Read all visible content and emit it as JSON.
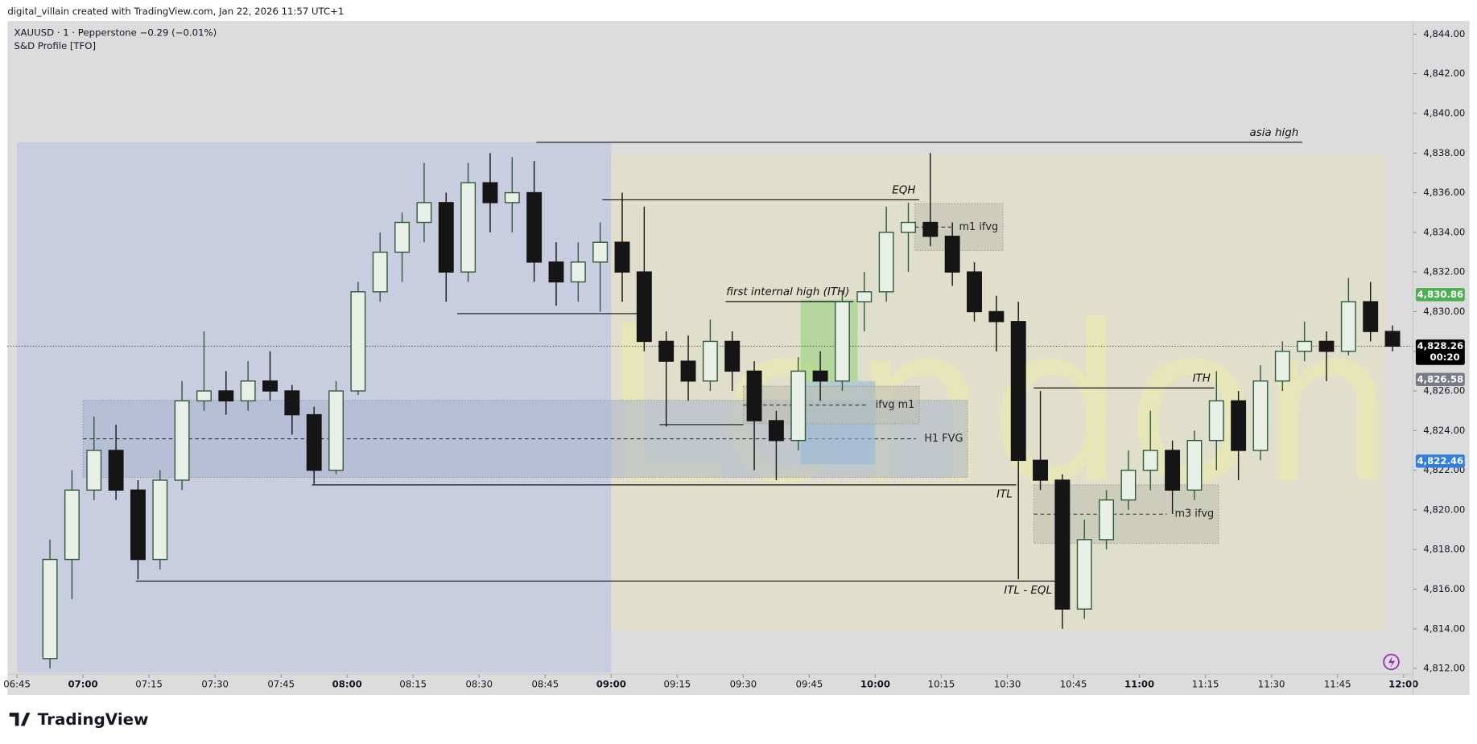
{
  "header": {
    "credit": "digital_villain created with TradingView.com, Jan 22, 2026 11:57 UTC+1",
    "logo": "TradingView"
  },
  "chart_data": {
    "type": "candlestick",
    "symbol_line": "XAUUSD · 1 · Pepperstone  −0.29 (−0.01%)",
    "indicator": "S&D Profile [TFO]",
    "up_color": "#2f5a3c",
    "down_color": "#151515",
    "x": [
      "06:50",
      "06:55",
      "07:00",
      "07:05",
      "07:10",
      "07:15",
      "07:20",
      "07:25",
      "07:30",
      "07:35",
      "07:40",
      "07:45",
      "07:50",
      "07:55",
      "08:00",
      "08:05",
      "08:10",
      "08:15",
      "08:20",
      "08:25",
      "08:30",
      "08:35",
      "08:40",
      "08:45",
      "08:50",
      "08:55",
      "09:00",
      "09:05",
      "09:10",
      "09:15",
      "09:20",
      "09:25",
      "09:30",
      "09:35",
      "09:40",
      "09:45",
      "09:50",
      "09:55",
      "10:00",
      "10:05",
      "10:10",
      "10:15",
      "10:20",
      "10:25",
      "10:30",
      "10:35",
      "10:40",
      "10:45",
      "10:50",
      "10:55",
      "11:00",
      "11:05",
      "11:10",
      "11:15",
      "11:20",
      "11:25",
      "11:30",
      "11:35",
      "11:40",
      "11:45",
      "11:50",
      "11:55"
    ],
    "open": [
      4812.5,
      4817.5,
      4821,
      4823,
      4821,
      4817.5,
      4821.5,
      4825.5,
      4826,
      4825.5,
      4826.5,
      4826,
      4824.8,
      4822,
      4826,
      4831,
      4833,
      4834.5,
      4835.5,
      4832,
      4836.5,
      4835.5,
      4836,
      4832.5,
      4831.5,
      4832.5,
      4833.5,
      4832,
      4828.5,
      4827.5,
      4826.5,
      4828.5,
      4827,
      4824.5,
      4823.5,
      4827,
      4826.5,
      4830.5,
      4831,
      4834,
      4834.5,
      4833.8,
      4832,
      4830,
      4829.5,
      4822.5,
      4821.5,
      4815,
      4818.5,
      4820.5,
      4822,
      4823,
      4821,
      4823.5,
      4825.5,
      4823,
      4826.5,
      4828,
      4828.5,
      4828,
      4830.5,
      4829
    ],
    "high": [
      4818.5,
      4822,
      4824.7,
      4824.3,
      4821.5,
      4822,
      4826.5,
      4829,
      4827,
      4827.5,
      4828,
      4826.3,
      4825.2,
      4826.5,
      4831.5,
      4834,
      4835,
      4837.5,
      4836,
      4837.5,
      4838,
      4837.8,
      4837.6,
      4833.5,
      4833.5,
      4834.5,
      4836,
      4835.3,
      4829,
      4828.8,
      4829.6,
      4829,
      4827.5,
      4825,
      4827.7,
      4828,
      4831,
      4832,
      4835.3,
      4835.5,
      4838,
      4834.5,
      4832.5,
      4830.8,
      4830.5,
      4826,
      4821.8,
      4819.5,
      4821,
      4823,
      4825,
      4823.5,
      4824,
      4827,
      4826,
      4827.3,
      4828.5,
      4829.5,
      4829,
      4831.7,
      4831.5,
      4829.3
    ],
    "low": [
      4812,
      4815.5,
      4820.5,
      4820.5,
      4816.5,
      4817,
      4821,
      4825,
      4824.8,
      4825,
      4825.5,
      4823.8,
      4821.3,
      4821.8,
      4825.8,
      4830.5,
      4831.5,
      4833.5,
      4830.5,
      4831.5,
      4834,
      4834,
      4831.5,
      4830.3,
      4830.5,
      4830,
      4830.5,
      4828,
      4824.2,
      4825.5,
      4826,
      4826,
      4822,
      4821.5,
      4823,
      4825.5,
      4826,
      4829,
      4830.5,
      4832,
      4833.3,
      4831.3,
      4829.5,
      4828,
      4816.5,
      4821,
      4814,
      4814.5,
      4818,
      4820,
      4821,
      4819.8,
      4820.5,
      4822,
      4821.5,
      4822.5,
      4826,
      4827.5,
      4826.5,
      4827.8,
      4828.5,
      4828
    ],
    "close": [
      4817.5,
      4821,
      4823,
      4821,
      4817.5,
      4821.5,
      4825.5,
      4826,
      4825.5,
      4826.5,
      4826,
      4824.8,
      4822,
      4826,
      4831,
      4833,
      4834.5,
      4835.5,
      4832,
      4836.5,
      4835.5,
      4836,
      4832.5,
      4831.5,
      4832.5,
      4833.5,
      4832,
      4828.5,
      4827.5,
      4826.5,
      4828.5,
      4827,
      4824.5,
      4823.5,
      4827,
      4826.5,
      4830.5,
      4831,
      4834,
      4834.5,
      4833.8,
      4832,
      4830,
      4829.5,
      4822.5,
      4821.5,
      4815,
      4818.5,
      4820.5,
      4822,
      4823,
      4821,
      4823.5,
      4825.5,
      4823,
      4826.5,
      4828,
      4828.5,
      4828,
      4830.5,
      4829,
      4828.26
    ],
    "xlim": [
      "06:45",
      "12:00"
    ],
    "xticks": [
      "06:45",
      "07:00",
      "07:15",
      "07:30",
      "07:45",
      "08:00",
      "08:15",
      "08:30",
      "08:45",
      "09:00",
      "09:15",
      "09:30",
      "09:45",
      "10:00",
      "10:15",
      "10:30",
      "10:45",
      "11:00",
      "11:15",
      "11:30",
      "11:45",
      "12:00"
    ],
    "ylim": [
      4812,
      4844
    ],
    "yticks": [
      {
        "value": 4812,
        "label": "4,812.00"
      },
      {
        "value": 4814,
        "label": "4,814.00"
      },
      {
        "value": 4816,
        "label": "4,816.00"
      },
      {
        "value": 4818,
        "label": "4,818.00"
      },
      {
        "value": 4820,
        "label": "4,820.00"
      },
      {
        "value": 4822,
        "label": "4,822.00"
      },
      {
        "value": 4824,
        "label": "4,824.00"
      },
      {
        "value": 4826,
        "label": "4,826.00"
      },
      {
        "value": 4828,
        "label": "4,828.00"
      },
      {
        "value": 4830,
        "label": "4,830.00"
      },
      {
        "value": 4832,
        "label": "4,832.00"
      },
      {
        "value": 4834,
        "label": "4,834.00"
      },
      {
        "value": 4836,
        "label": "4,836.00"
      },
      {
        "value": 4838,
        "label": "4,838.00"
      },
      {
        "value": 4840,
        "label": "4,840.00"
      },
      {
        "value": 4842,
        "label": "4,842.00"
      },
      {
        "value": 4844,
        "label": "4,844.00"
      }
    ],
    "price_labels": [
      {
        "value": 4830.86,
        "label": "4,830.86",
        "color": "#4caf50"
      },
      {
        "value": 4828.26,
        "label": "4,828.26",
        "color": "#000000"
      },
      {
        "value": 4826.58,
        "label": "4,826.58",
        "color": "#787b86"
      },
      {
        "value": 4822.46,
        "label": "4,822.46",
        "color": "#2f7fe0"
      }
    ],
    "countdown": "00:20",
    "sessions": [
      {
        "from": "06:45",
        "to": "09:00",
        "top": 4838.54,
        "bottom": 4811.8,
        "color": "#c8cee0"
      },
      {
        "from": "09:00",
        "to": "11:56",
        "top": 4837.97,
        "bottom": 4813.9,
        "color": "#e0dfcb",
        "label": "London"
      }
    ],
    "zones": [
      {
        "label": "H1 FVG",
        "from": "07:00",
        "to": "10:21",
        "top": 4825.53,
        "bottom": 4821.64,
        "color": "#a8b2cc"
      },
      {
        "from": "09:43",
        "to": "09:56",
        "top": 4830.6,
        "bottom": 4826.5,
        "color": "#8fd07a"
      },
      {
        "from": "09:43",
        "to": "10:00",
        "top": 4826.5,
        "bottom": 4822.3,
        "color": "#8fb8dc"
      },
      {
        "label": "ifvg m1",
        "from": "09:30",
        "to": "10:10",
        "top": 4826.24,
        "bottom": 4824.34,
        "color": "#bdbdb0"
      },
      {
        "label": "m1 ifvg",
        "from": "10:09",
        "to": "10:29",
        "top": 4835.45,
        "bottom": 4833.08,
        "color": "#bdbdb0"
      },
      {
        "label": "m3 ifvg",
        "from": "10:36",
        "to": "11:18",
        "top": 4821.26,
        "bottom": 4818.31,
        "color": "#bdbdb0"
      }
    ],
    "levels": [
      {
        "label": "asia high",
        "price": 4838.54,
        "from": "08:43",
        "to": "11:37",
        "label_side": "above"
      },
      {
        "label": "EQH",
        "price": 4835.64,
        "from": "08:58",
        "to": "10:10",
        "label_side": "above"
      },
      {
        "label": "first internal high (ITH)",
        "price": 4830.51,
        "from": "09:26",
        "to": "09:55",
        "label_side": "above"
      },
      {
        "label": "ITH",
        "price": 4826.15,
        "from": "10:36",
        "to": "11:17",
        "label_side": "above"
      },
      {
        "label": "ITL",
        "price": 4821.26,
        "from": "07:52",
        "to": "10:32",
        "label_side": "below"
      },
      {
        "label": "ITL - EQL",
        "price": 4816.41,
        "from": "07:12",
        "to": "10:41",
        "label_side": "below"
      },
      {
        "price": 4829.9,
        "from": "08:25",
        "to": "09:09"
      },
      {
        "price": 4824.3,
        "from": "09:11",
        "to": "09:30"
      }
    ]
  }
}
